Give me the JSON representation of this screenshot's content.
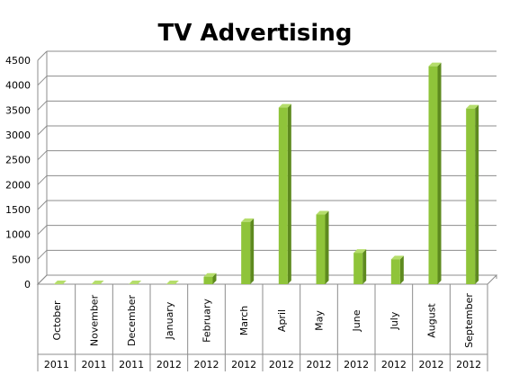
{
  "chart_data": {
    "type": "bar",
    "title": "TV Advertising",
    "xlabel": "",
    "ylabel": "",
    "ylim": [
      0,
      4500
    ],
    "yticks": [
      0,
      500,
      1000,
      1500,
      2000,
      2500,
      3000,
      3500,
      4000,
      4500
    ],
    "grid": true,
    "legend": "none",
    "bar_color": "#8fc43a",
    "categories": [
      {
        "month": "October",
        "year": "2011"
      },
      {
        "month": "November",
        "year": "2011"
      },
      {
        "month": "December",
        "year": "2011"
      },
      {
        "month": "January",
        "year": "2012"
      },
      {
        "month": "February",
        "year": "2012"
      },
      {
        "month": "March",
        "year": "2012"
      },
      {
        "month": "April",
        "year": "2012"
      },
      {
        "month": "May",
        "year": "2012"
      },
      {
        "month": "June",
        "year": "2012"
      },
      {
        "month": "July",
        "year": "2012"
      },
      {
        "month": "August",
        "year": "2012"
      },
      {
        "month": "September",
        "year": "2012"
      }
    ],
    "values": [
      0,
      0,
      0,
      0,
      150,
      1250,
      3550,
      1400,
      630,
      500,
      4380,
      3530
    ]
  }
}
